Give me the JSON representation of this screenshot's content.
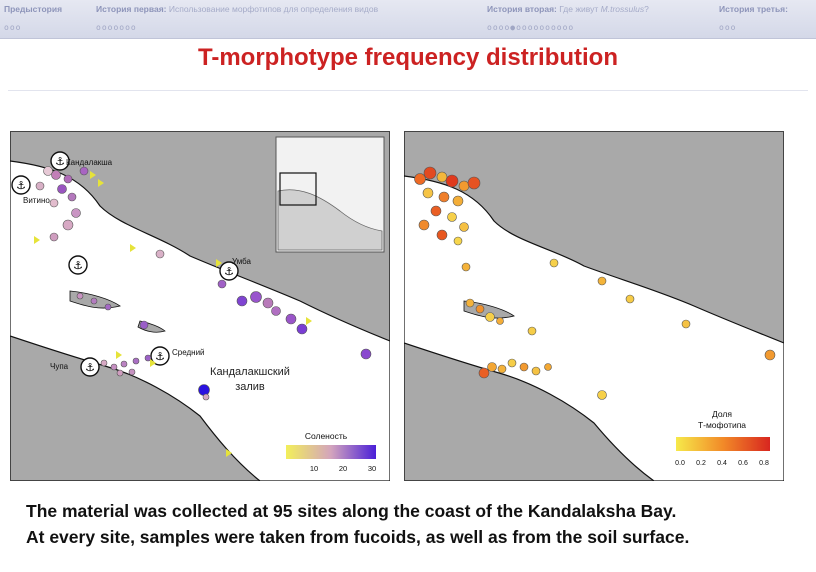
{
  "nav": {
    "items": [
      {
        "main": "Предыстория",
        "sub": "",
        "sub_italic": "",
        "sub_end": "",
        "dots": "ooo"
      },
      {
        "main": "История первая:",
        "sub": "Использование морфотипов для определения видов",
        "sub_italic": "",
        "sub_end": "",
        "dots": "ooooooo"
      },
      {
        "main": "История вторая:",
        "sub": "Где живут",
        "sub_italic": "M.trossulus",
        "sub_end": "?",
        "dots": "oooo●oooooooooo"
      },
      {
        "main": "История третья:",
        "sub": "",
        "sub_italic": "",
        "sub_end": "",
        "dots": "ooo"
      }
    ]
  },
  "title": "T-morphotype frequency distribution",
  "left_map": {
    "place_labels": [
      "Кандалакша",
      "Витино",
      "Умба",
      "Чупа",
      "Средний"
    ],
    "water_label_line1": "Кандалакшский",
    "water_label_line2": "залив",
    "legend_title": "Соленость",
    "legend_ticks": [
      "10",
      "20",
      "30"
    ],
    "legend_colors": [
      "#f2ef5a",
      "#d3a4bd",
      "#4a1fd8"
    ]
  },
  "right_map": {
    "legend_title_line1": "Доля",
    "legend_title_line2": "Т-мофотипа",
    "legend_ticks": [
      "0.0",
      "0.2",
      "0.4",
      "0.6",
      "0.8"
    ],
    "legend_colors": [
      "#f6e94a",
      "#f28a28",
      "#d8261f"
    ]
  },
  "caption": {
    "line1": "The material was collected at 95 sites along the coast of the Kandalaksha Bay.",
    "line2": "At every site, samples were taken from fucoids, as well as from the soil surface."
  }
}
